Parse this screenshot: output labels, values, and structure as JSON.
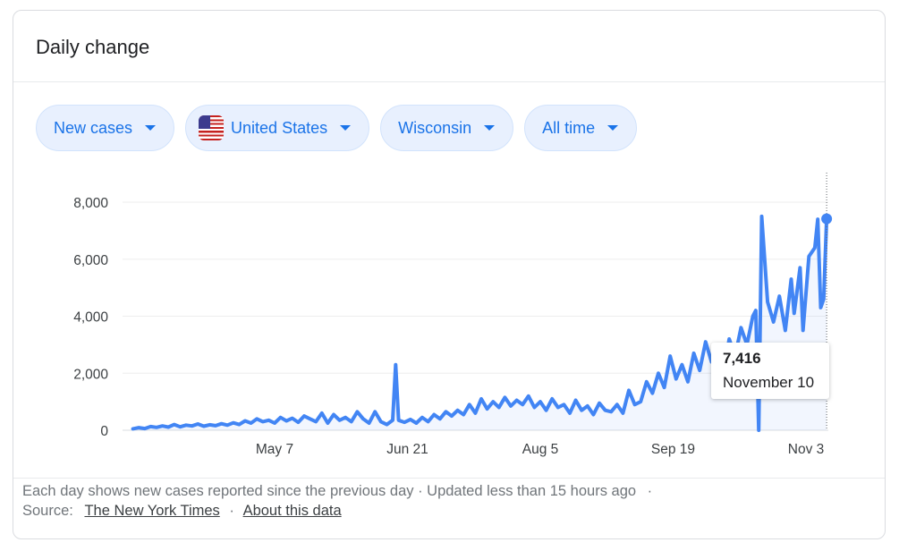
{
  "card": {
    "title": "Daily change"
  },
  "filters": [
    {
      "label": "New cases",
      "icon": "caret-down-icon"
    },
    {
      "label": "United States",
      "icon": "us-flag-icon"
    },
    {
      "label": "Wisconsin",
      "icon": "caret-down-icon"
    },
    {
      "label": "All time",
      "icon": "caret-down-icon"
    }
  ],
  "tooltip": {
    "value": "7,416",
    "date": "November 10"
  },
  "footer": {
    "text": "Each day shows new cases reported since the previous day · Updated less than 15 hours ago",
    "separator": "·",
    "source_label": "Source:",
    "source_link": "The New York Times",
    "about_link": "About this data"
  },
  "colors": {
    "line": "#4285f4",
    "accent": "#1a73e8",
    "chip_bg": "#e8f0fe"
  },
  "chart_data": {
    "type": "line",
    "title": "",
    "xlabel": "",
    "ylabel": "",
    "ylim": [
      0,
      8000
    ],
    "yticks": [
      0,
      2000,
      4000,
      6000,
      8000
    ],
    "ytick_labels": [
      "0",
      "2,000",
      "4,000",
      "6,000",
      "8,000"
    ],
    "xtick_labels": [
      "May 7",
      "Jun 21",
      "Aug 5",
      "Sep 19",
      "Nov 3"
    ],
    "xtick_dates": [
      "2020-05-07",
      "2020-06-21",
      "2020-08-05",
      "2020-09-19",
      "2020-11-03"
    ],
    "grid": true,
    "highlight": {
      "date": "2020-11-10",
      "value": 7416
    },
    "series": [
      {
        "points": [
          [
            "2020-03-20",
            50
          ],
          [
            "2020-03-22",
            90
          ],
          [
            "2020-03-24",
            60
          ],
          [
            "2020-03-26",
            130
          ],
          [
            "2020-03-28",
            100
          ],
          [
            "2020-03-30",
            150
          ],
          [
            "2020-04-01",
            110
          ],
          [
            "2020-04-03",
            200
          ],
          [
            "2020-04-05",
            120
          ],
          [
            "2020-04-07",
            180
          ],
          [
            "2020-04-09",
            150
          ],
          [
            "2020-04-11",
            220
          ],
          [
            "2020-04-13",
            140
          ],
          [
            "2020-04-15",
            190
          ],
          [
            "2020-04-17",
            160
          ],
          [
            "2020-04-19",
            230
          ],
          [
            "2020-04-21",
            180
          ],
          [
            "2020-04-23",
            260
          ],
          [
            "2020-04-25",
            200
          ],
          [
            "2020-04-27",
            330
          ],
          [
            "2020-04-29",
            250
          ],
          [
            "2020-05-01",
            400
          ],
          [
            "2020-05-03",
            300
          ],
          [
            "2020-05-05",
            350
          ],
          [
            "2020-05-07",
            250
          ],
          [
            "2020-05-09",
            450
          ],
          [
            "2020-05-11",
            330
          ],
          [
            "2020-05-13",
            420
          ],
          [
            "2020-05-15",
            280
          ],
          [
            "2020-05-17",
            500
          ],
          [
            "2020-05-19",
            400
          ],
          [
            "2020-05-21",
            300
          ],
          [
            "2020-05-23",
            600
          ],
          [
            "2020-05-25",
            250
          ],
          [
            "2020-05-27",
            550
          ],
          [
            "2020-05-29",
            350
          ],
          [
            "2020-05-31",
            450
          ],
          [
            "2020-06-02",
            300
          ],
          [
            "2020-06-04",
            650
          ],
          [
            "2020-06-06",
            400
          ],
          [
            "2020-06-08",
            250
          ],
          [
            "2020-06-10",
            650
          ],
          [
            "2020-06-12",
            300
          ],
          [
            "2020-06-14",
            200
          ],
          [
            "2020-06-16",
            350
          ],
          [
            "2020-06-17",
            2300
          ],
          [
            "2020-06-18",
            350
          ],
          [
            "2020-06-20",
            280
          ],
          [
            "2020-06-22",
            380
          ],
          [
            "2020-06-24",
            250
          ],
          [
            "2020-06-26",
            450
          ],
          [
            "2020-06-28",
            300
          ],
          [
            "2020-06-30",
            550
          ],
          [
            "2020-07-02",
            400
          ],
          [
            "2020-07-04",
            650
          ],
          [
            "2020-07-06",
            500
          ],
          [
            "2020-07-08",
            700
          ],
          [
            "2020-07-10",
            550
          ],
          [
            "2020-07-12",
            900
          ],
          [
            "2020-07-14",
            600
          ],
          [
            "2020-07-16",
            1100
          ],
          [
            "2020-07-18",
            750
          ],
          [
            "2020-07-20",
            1000
          ],
          [
            "2020-07-22",
            800
          ],
          [
            "2020-07-24",
            1150
          ],
          [
            "2020-07-26",
            850
          ],
          [
            "2020-07-28",
            1050
          ],
          [
            "2020-07-30",
            900
          ],
          [
            "2020-08-01",
            1200
          ],
          [
            "2020-08-03",
            800
          ],
          [
            "2020-08-05",
            1000
          ],
          [
            "2020-08-07",
            700
          ],
          [
            "2020-08-09",
            1100
          ],
          [
            "2020-08-11",
            800
          ],
          [
            "2020-08-13",
            900
          ],
          [
            "2020-08-15",
            600
          ],
          [
            "2020-08-17",
            1050
          ],
          [
            "2020-08-19",
            700
          ],
          [
            "2020-08-21",
            850
          ],
          [
            "2020-08-23",
            550
          ],
          [
            "2020-08-25",
            950
          ],
          [
            "2020-08-27",
            700
          ],
          [
            "2020-08-29",
            650
          ],
          [
            "2020-08-31",
            900
          ],
          [
            "2020-09-02",
            600
          ],
          [
            "2020-09-04",
            1400
          ],
          [
            "2020-09-06",
            900
          ],
          [
            "2020-09-08",
            1000
          ],
          [
            "2020-09-10",
            1700
          ],
          [
            "2020-09-12",
            1300
          ],
          [
            "2020-09-14",
            2000
          ],
          [
            "2020-09-16",
            1500
          ],
          [
            "2020-09-18",
            2600
          ],
          [
            "2020-09-20",
            1800
          ],
          [
            "2020-09-22",
            2300
          ],
          [
            "2020-09-24",
            1700
          ],
          [
            "2020-09-26",
            2700
          ],
          [
            "2020-09-28",
            2100
          ],
          [
            "2020-09-30",
            3100
          ],
          [
            "2020-10-02",
            2400
          ],
          [
            "2020-10-04",
            2900
          ],
          [
            "2020-10-06",
            2000
          ],
          [
            "2020-10-08",
            3200
          ],
          [
            "2020-10-10",
            2600
          ],
          [
            "2020-10-12",
            3600
          ],
          [
            "2020-10-14",
            3000
          ],
          [
            "2020-10-16",
            4000
          ],
          [
            "2020-10-17",
            4200
          ],
          [
            "2020-10-18",
            0
          ],
          [
            "2020-10-19",
            7500
          ],
          [
            "2020-10-21",
            4500
          ],
          [
            "2020-10-23",
            3800
          ],
          [
            "2020-10-25",
            4700
          ],
          [
            "2020-10-27",
            3500
          ],
          [
            "2020-10-29",
            5300
          ],
          [
            "2020-10-30",
            4100
          ],
          [
            "2020-11-01",
            5700
          ],
          [
            "2020-11-02",
            3500
          ],
          [
            "2020-11-04",
            6100
          ],
          [
            "2020-11-06",
            6400
          ],
          [
            "2020-11-07",
            7400
          ],
          [
            "2020-11-08",
            4300
          ],
          [
            "2020-11-09",
            4600
          ],
          [
            "2020-11-10",
            7416
          ]
        ]
      }
    ]
  }
}
